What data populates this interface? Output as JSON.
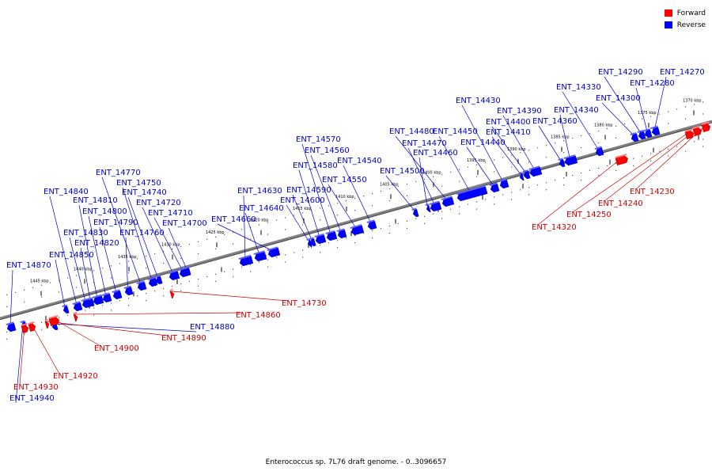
{
  "legend": [
    {
      "label": "Forward",
      "color": "#ff0000"
    },
    {
      "label": "Reverse",
      "color": "#0000ff"
    }
  ],
  "caption": "Enterococcus sp. 7L76 draft genome. - 0..3096657",
  "colors": {
    "forward": "#ff0000",
    "reverse": "#0000ff",
    "backbone": "#808080",
    "forward_label": "#cc0000",
    "reverse_label": "#0000cc"
  },
  "scale_ticks": [
    "1370 kbp",
    "1375 kbp",
    "1380 kbp",
    "1385 kbp",
    "1390 kbp",
    "1395 kbp",
    "1400 kbp",
    "1405 kbp",
    "1410 kbp",
    "1415 kbp",
    "1420 kbp",
    "1425 kbp",
    "1430 kbp",
    "1435 kbp",
    "1440 kbp",
    "1445 kbp"
  ],
  "genes": [
    {
      "name": "ENT_14270",
      "strand": "reverse"
    },
    {
      "name": "ENT_14280",
      "strand": "reverse"
    },
    {
      "name": "ENT_14290",
      "strand": "reverse"
    },
    {
      "name": "ENT_14300",
      "strand": "reverse"
    },
    {
      "name": "ENT_14330",
      "strand": "reverse"
    },
    {
      "name": "ENT_14340",
      "strand": "reverse"
    },
    {
      "name": "ENT_14360",
      "strand": "reverse"
    },
    {
      "name": "ENT_14430",
      "strand": "reverse"
    },
    {
      "name": "ENT_14390",
      "strand": "reverse"
    },
    {
      "name": "ENT_14400",
      "strand": "reverse"
    },
    {
      "name": "ENT_14410",
      "strand": "reverse"
    },
    {
      "name": "ENT_14440",
      "strand": "reverse"
    },
    {
      "name": "ENT_14450",
      "strand": "reverse"
    },
    {
      "name": "ENT_14480",
      "strand": "reverse"
    },
    {
      "name": "ENT_14470",
      "strand": "reverse"
    },
    {
      "name": "ENT_14460",
      "strand": "reverse"
    },
    {
      "name": "ENT_14500",
      "strand": "reverse"
    },
    {
      "name": "ENT_14540",
      "strand": "reverse"
    },
    {
      "name": "ENT_14550",
      "strand": "reverse"
    },
    {
      "name": "ENT_14570",
      "strand": "reverse"
    },
    {
      "name": "ENT_14560",
      "strand": "reverse"
    },
    {
      "name": "ENT_14580",
      "strand": "reverse"
    },
    {
      "name": "ENT_14590",
      "strand": "reverse"
    },
    {
      "name": "ENT_14600",
      "strand": "reverse"
    },
    {
      "name": "ENT_14630",
      "strand": "reverse"
    },
    {
      "name": "ENT_14640",
      "strand": "reverse"
    },
    {
      "name": "ENT_14660",
      "strand": "reverse"
    },
    {
      "name": "ENT_14770",
      "strand": "reverse"
    },
    {
      "name": "ENT_14750",
      "strand": "reverse"
    },
    {
      "name": "ENT_14740",
      "strand": "reverse"
    },
    {
      "name": "ENT_14720",
      "strand": "reverse"
    },
    {
      "name": "ENT_14710",
      "strand": "reverse"
    },
    {
      "name": "ENT_14700",
      "strand": "reverse"
    },
    {
      "name": "ENT_14840",
      "strand": "reverse"
    },
    {
      "name": "ENT_14810",
      "strand": "reverse"
    },
    {
      "name": "ENT_14800",
      "strand": "reverse"
    },
    {
      "name": "ENT_14790",
      "strand": "reverse"
    },
    {
      "name": "ENT_14760",
      "strand": "reverse"
    },
    {
      "name": "ENT_14830",
      "strand": "reverse"
    },
    {
      "name": "ENT_14820",
      "strand": "reverse"
    },
    {
      "name": "ENT_14850",
      "strand": "reverse"
    },
    {
      "name": "ENT_14870",
      "strand": "reverse"
    },
    {
      "name": "ENT_14880",
      "strand": "reverse"
    },
    {
      "name": "ENT_14940",
      "strand": "reverse"
    },
    {
      "name": "ENT_14230",
      "strand": "forward"
    },
    {
      "name": "ENT_14240",
      "strand": "forward"
    },
    {
      "name": "ENT_14250",
      "strand": "forward"
    },
    {
      "name": "ENT_14320",
      "strand": "forward"
    },
    {
      "name": "ENT_14730",
      "strand": "forward"
    },
    {
      "name": "ENT_14860",
      "strand": "forward"
    },
    {
      "name": "ENT_14890",
      "strand": "forward"
    },
    {
      "name": "ENT_14900",
      "strand": "forward"
    },
    {
      "name": "ENT_14920",
      "strand": "forward"
    },
    {
      "name": "ENT_14930",
      "strand": "forward"
    }
  ]
}
